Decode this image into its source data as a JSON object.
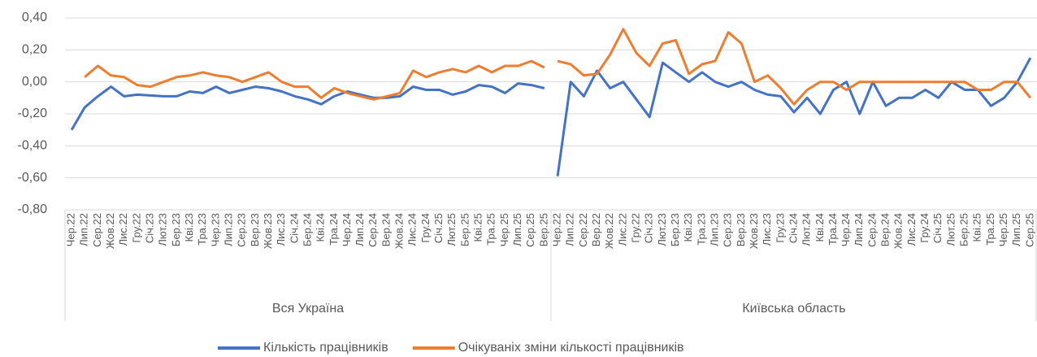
{
  "chart_data": {
    "type": "line",
    "groups": [
      {
        "label": "Вся Україна",
        "categories": [
          "Чер.22",
          "Лип.22",
          "Сер.22",
          "Жов.22",
          "Лис.22",
          "Гру.22",
          "Січ.23",
          "Лют.23",
          "Бер.23",
          "Кві.23",
          "Тра.23",
          "Чер.23",
          "Лип.23",
          "Сер.23",
          "Вер.23",
          "Жов.23",
          "Лис.23",
          "Січ.24",
          "Бер.24",
          "Кві.24",
          "Тра.24",
          "Чер.24",
          "Лип.24",
          "Сер.24",
          "Вер.24",
          "Жов.24",
          "Лис.24",
          "Гру.24",
          "Січ.25",
          "Лют.25",
          "Бер.25",
          "Кві.25",
          "Тра.25",
          "Чер.25",
          "Лип.25",
          "Сер.25",
          "Вер.25"
        ]
      },
      {
        "label": "Київська область",
        "categories": [
          "Чер.22",
          "Лип.22",
          "Сер.22",
          "Вер.22",
          "Жов.22",
          "Лис.22",
          "Гру.22",
          "Січ.23",
          "Лют.23",
          "Бер.23",
          "Кві.23",
          "Тра.23",
          "Лип.23",
          "Сер.23",
          "Вер.23",
          "Жов.23",
          "Лис.23",
          "Гру.23",
          "Січ.24",
          "Лют.24",
          "Кві.24",
          "Тра.24",
          "Чер.24",
          "Лип.24",
          "Сер.24",
          "Вер.24",
          "Жов.24",
          "Лис.24",
          "Гру.24",
          "Січ.25",
          "Лют.25",
          "Бер.25",
          "Кві.25",
          "Тра.25",
          "Чер.25",
          "Лип.25",
          "Сер.25"
        ]
      }
    ],
    "series": [
      {
        "name": "Кількість працівників",
        "color": "#4472c4",
        "values": [
          [
            -0.3,
            -0.16,
            -0.09,
            -0.03,
            -0.09,
            -0.08,
            -0.085,
            -0.09,
            -0.09,
            -0.06,
            -0.07,
            -0.03,
            -0.07,
            -0.05,
            -0.03,
            -0.04,
            -0.06,
            -0.09,
            -0.11,
            -0.14,
            -0.09,
            -0.06,
            -0.08,
            -0.1,
            -0.1,
            -0.09,
            -0.03,
            -0.05,
            -0.05,
            -0.08,
            -0.06,
            -0.02,
            -0.03,
            -0.07,
            -0.01,
            -0.02,
            -0.04
          ],
          [
            -0.59,
            0.0,
            -0.09,
            0.07,
            -0.04,
            0.0,
            -0.11,
            -0.22,
            0.12,
            0.06,
            0.0,
            0.06,
            0.0,
            -0.03,
            0.0,
            -0.05,
            -0.08,
            -0.09,
            -0.19,
            -0.1,
            -0.2,
            -0.05,
            0.0,
            -0.2,
            0.0,
            -0.15,
            -0.1,
            -0.1,
            -0.05,
            -0.1,
            0.0,
            -0.05,
            -0.05,
            -0.15,
            -0.1,
            0.0,
            0.15
          ]
        ]
      },
      {
        "name": "Очікуваніх зміни кількості працівників",
        "color": "#ed7d31",
        "values": [
          [
            null,
            0.03,
            0.1,
            0.04,
            0.03,
            -0.02,
            -0.03,
            0.0,
            0.03,
            0.04,
            0.06,
            0.04,
            0.03,
            0.0,
            0.03,
            0.06,
            0.0,
            -0.03,
            -0.03,
            -0.1,
            -0.04,
            -0.07,
            -0.09,
            -0.11,
            -0.09,
            -0.07,
            0.07,
            0.03,
            0.06,
            0.08,
            0.06,
            0.1,
            0.06,
            0.1,
            0.1,
            0.13,
            0.09
          ],
          [
            0.13,
            0.11,
            0.04,
            0.05,
            0.17,
            0.33,
            0.18,
            0.1,
            0.24,
            0.26,
            0.05,
            0.11,
            0.13,
            0.31,
            0.24,
            0.0,
            0.04,
            -0.04,
            -0.14,
            -0.05,
            0.0,
            0.0,
            -0.05,
            0.0,
            0.0,
            0.0,
            0.0,
            0.0,
            0.0,
            0.0,
            0.0,
            0.0,
            -0.05,
            -0.05,
            0.0,
            0.0,
            -0.1
          ]
        ]
      }
    ],
    "ylim": [
      -0.8,
      0.4
    ],
    "yticks": [
      {
        "value": 0.4,
        "label": "0,40"
      },
      {
        "value": 0.2,
        "label": "0,20"
      },
      {
        "value": 0,
        "label": "0,00"
      },
      {
        "value": -0.2,
        "label": "-0,20"
      },
      {
        "value": -0.4,
        "label": "-0,40"
      },
      {
        "value": -0.6,
        "label": "-0,60"
      },
      {
        "value": -0.8,
        "label": "-0,80"
      }
    ],
    "grid": true,
    "legend": "bottom"
  }
}
